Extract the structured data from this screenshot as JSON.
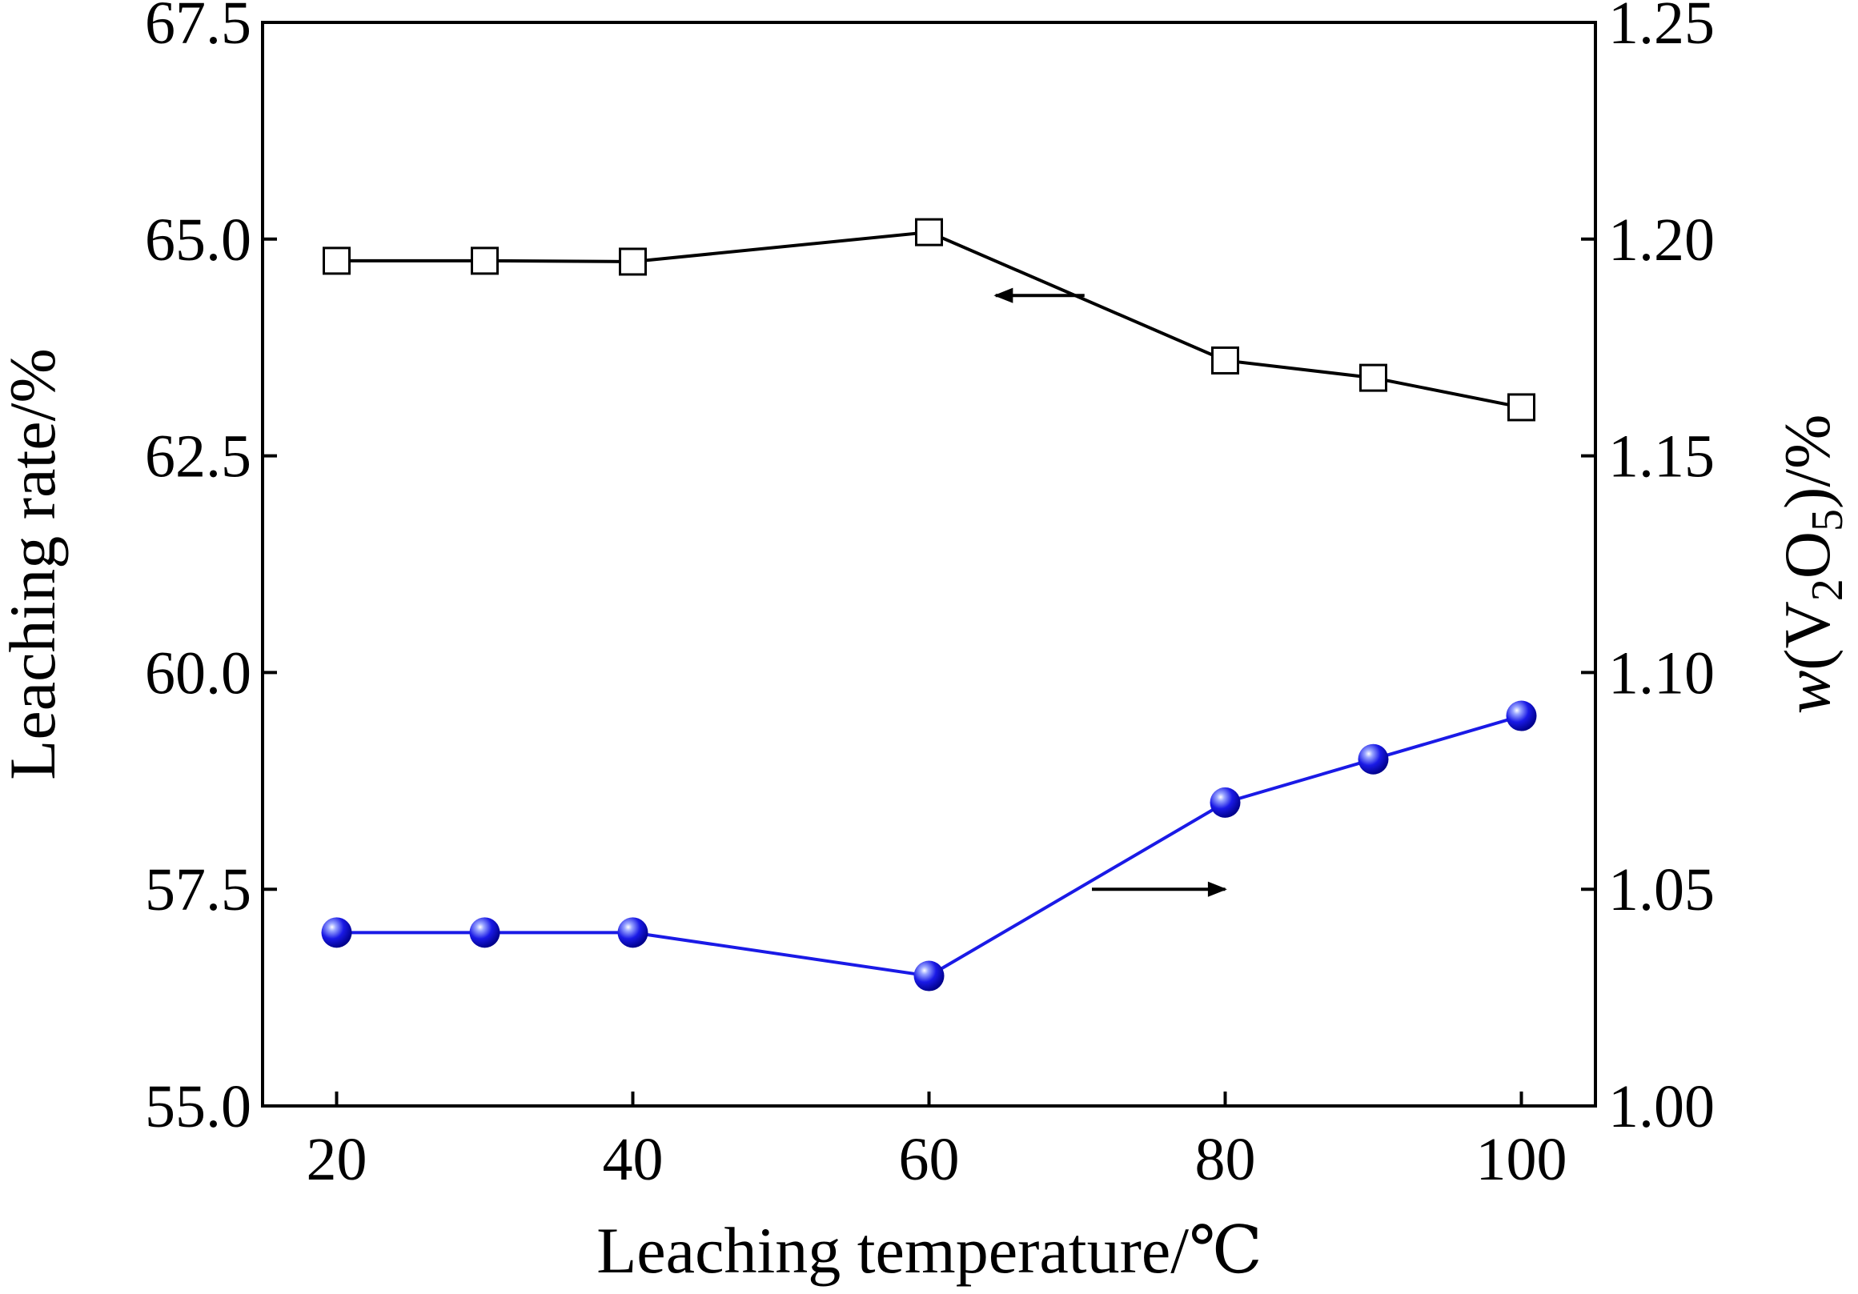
{
  "chart_data": {
    "type": "line",
    "x": [
      20,
      30,
      40,
      60,
      80,
      90,
      100
    ],
    "xlabel": "Leaching temperature/℃",
    "xlim": [
      15,
      105
    ],
    "xticks": [
      "20",
      "40",
      "60",
      "80",
      "100"
    ],
    "xtick_values": [
      20,
      40,
      60,
      80,
      100
    ],
    "ylabel": "Leaching rate/%",
    "ylim": [
      55.0,
      67.5
    ],
    "yticks": [
      "55.0",
      "57.5",
      "60.0",
      "62.5",
      "65.0",
      "67.5"
    ],
    "ytick_values": [
      55.0,
      57.5,
      60.0,
      62.5,
      65.0,
      67.5
    ],
    "y2label": {
      "prefix": "w",
      "open": "(V",
      "sub1": "2",
      "mid": "O",
      "sub2": "5",
      "close": ")/%"
    },
    "y2lim": [
      1.0,
      1.25
    ],
    "y2ticks": [
      "1.00",
      "1.05",
      "1.10",
      "1.15",
      "1.20",
      "1.25"
    ],
    "y2tick_values": [
      1.0,
      1.05,
      1.1,
      1.15,
      1.2,
      1.25
    ],
    "grid": false,
    "series": [
      {
        "axis": "left",
        "marker": "open-square",
        "color": "#000000",
        "values": [
          64.75,
          64.75,
          64.74,
          65.08,
          63.6,
          63.4,
          63.06
        ]
      },
      {
        "axis": "right",
        "marker": "filled-sphere",
        "color": "#1a1ae6",
        "values": [
          1.04,
          1.04,
          1.04,
          1.03,
          1.07,
          1.08,
          1.09
        ]
      }
    ],
    "annotations": [
      {
        "type": "arrow",
        "direction": "left",
        "points_to": "left-axis",
        "x_from": 70.5,
        "x_to": 64.5,
        "y": 64.35,
        "axis": "left"
      },
      {
        "type": "arrow",
        "direction": "right",
        "points_to": "right-axis",
        "x_from": 71,
        "x_to": 80,
        "y": 1.05,
        "axis": "right"
      }
    ]
  }
}
